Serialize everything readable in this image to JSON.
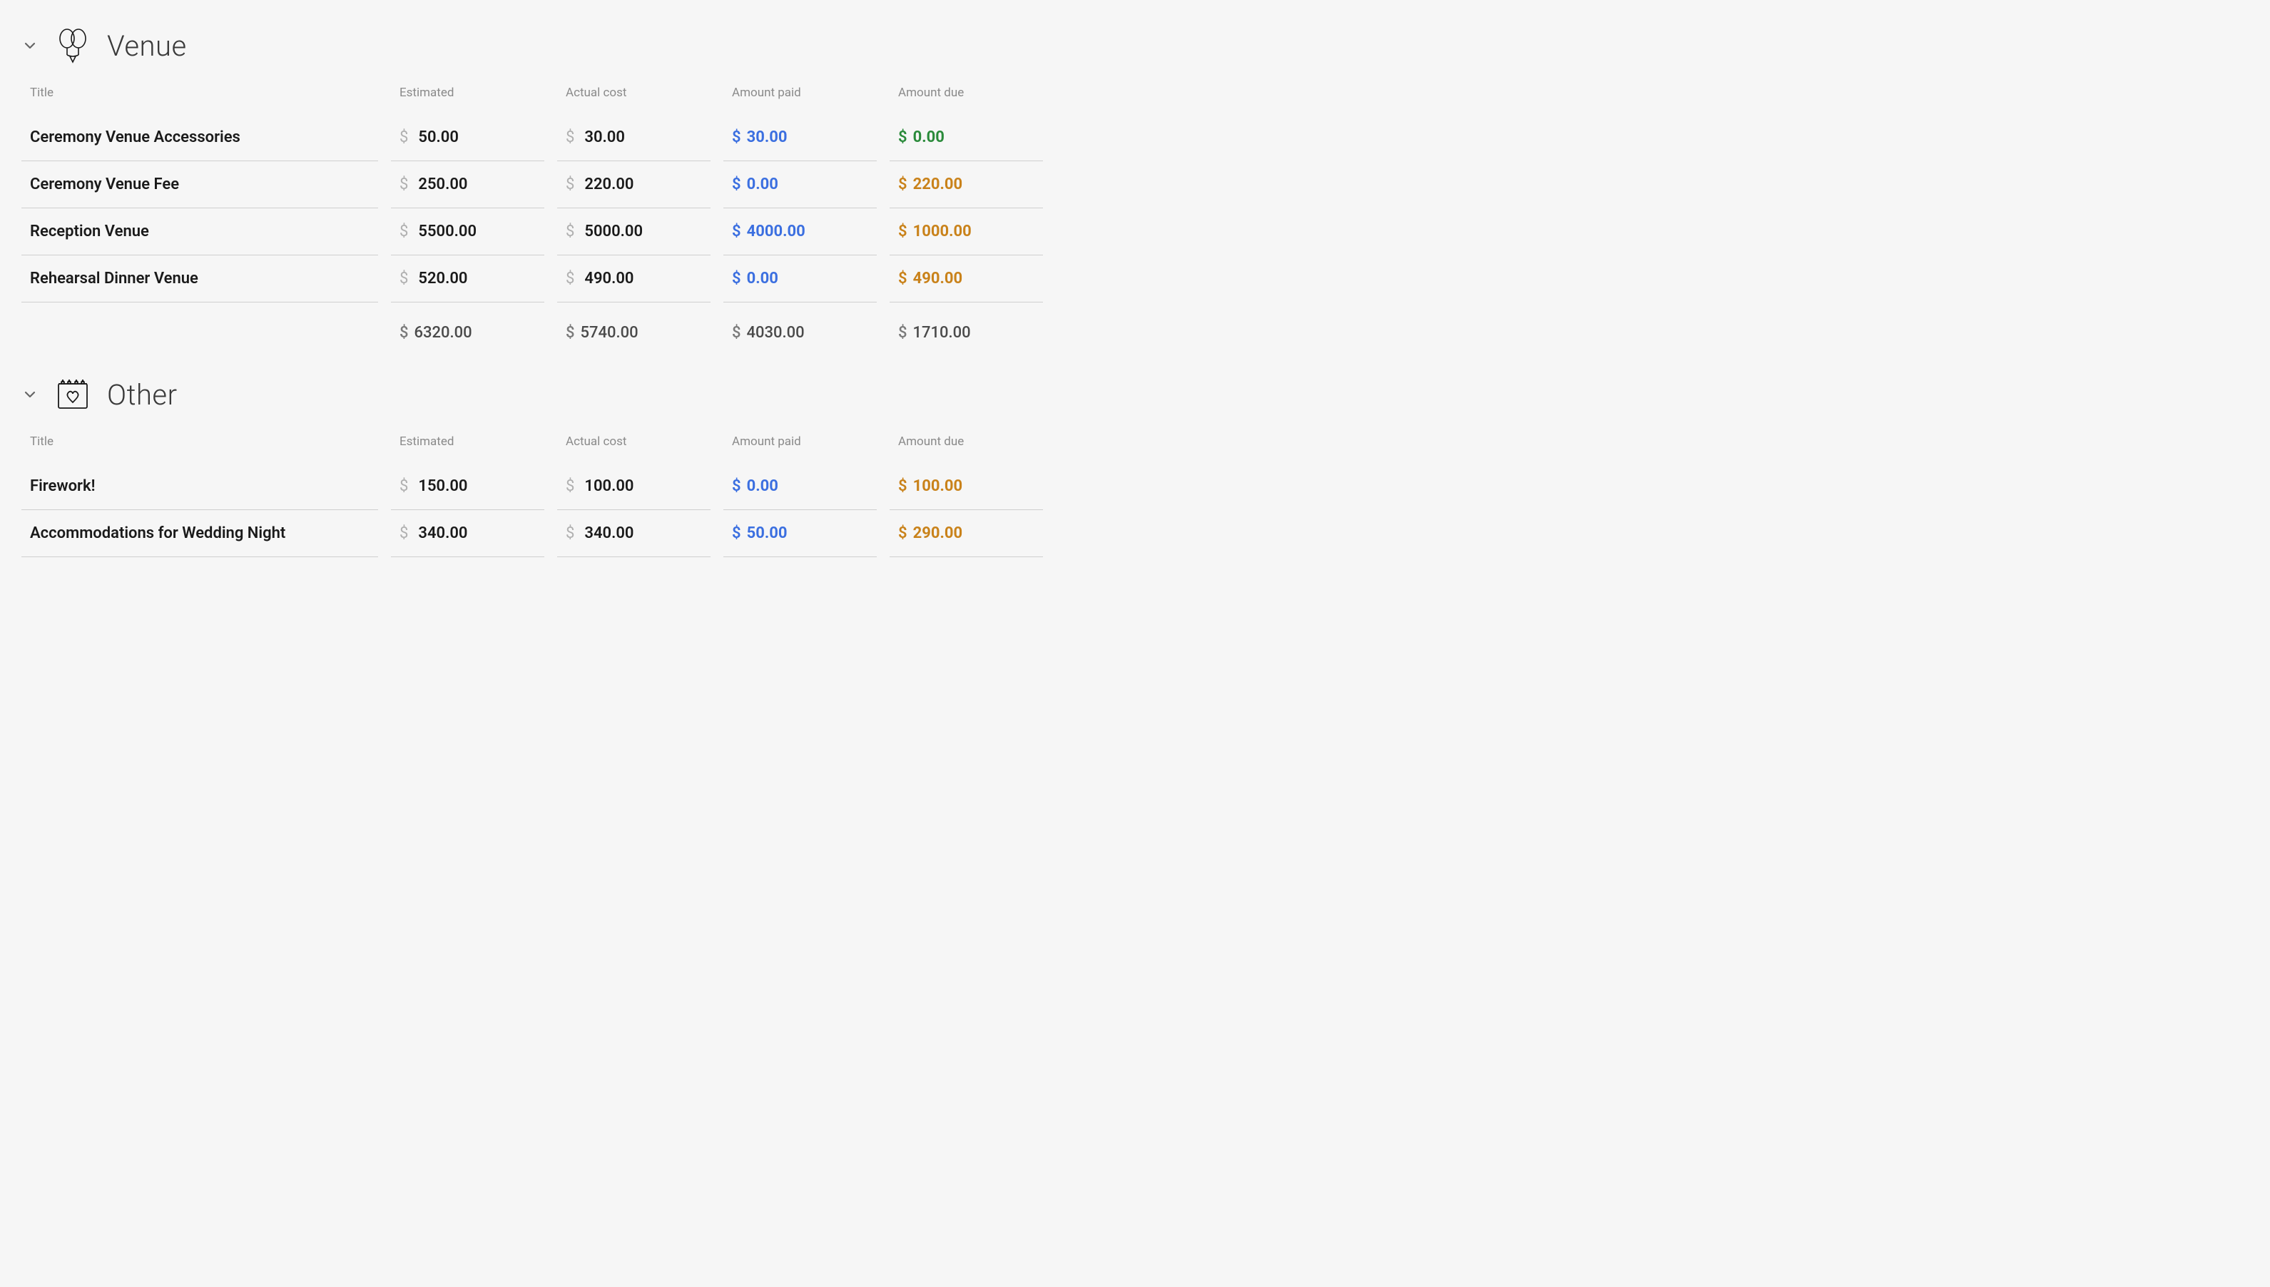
{
  "currency_symbol": "$",
  "columns": {
    "title": "Title",
    "estimated": "Estimated",
    "actual_cost": "Actual cost",
    "amount_paid": "Amount paid",
    "amount_due": "Amount due"
  },
  "colors": {
    "bg": "#f6f6f6",
    "text": "#1a1a1a",
    "muted": "#8a8a8a",
    "currency_muted": "#b0b0b0",
    "border": "#cfcfcf",
    "paid": "#3b6fe0",
    "due_positive": "#c9821a",
    "due_zero": "#2a8a3a"
  },
  "sections": [
    {
      "id": "venue",
      "icon": "balloons-icon",
      "title": "Venue",
      "rows": [
        {
          "title": "Ceremony Venue Accessories",
          "estimated": "50.00",
          "actual": "30.00",
          "paid": "30.00",
          "due": "0.00",
          "due_state": "zero"
        },
        {
          "title": "Ceremony Venue Fee",
          "estimated": "250.00",
          "actual": "220.00",
          "paid": "0.00",
          "due": "220.00",
          "due_state": "pos"
        },
        {
          "title": "Reception Venue",
          "estimated": "5500.00",
          "actual": "5000.00",
          "paid": "4000.00",
          "due": "1000.00",
          "due_state": "pos"
        },
        {
          "title": "Rehearsal Dinner Venue",
          "estimated": "520.00",
          "actual": "490.00",
          "paid": "0.00",
          "due": "490.00",
          "due_state": "pos"
        }
      ],
      "totals": {
        "estimated": "6320.00",
        "actual": "5740.00",
        "paid": "4030.00",
        "due": "1710.00"
      }
    },
    {
      "id": "other",
      "icon": "calendar-heart-icon",
      "title": "Other",
      "rows": [
        {
          "title": "Firework!",
          "estimated": "150.00",
          "actual": "100.00",
          "paid": "0.00",
          "due": "100.00",
          "due_state": "pos"
        },
        {
          "title": "Accommodations for Wedding Night",
          "estimated": "340.00",
          "actual": "340.00",
          "paid": "50.00",
          "due": "290.00",
          "due_state": "pos"
        }
      ],
      "totals": null
    }
  ]
}
